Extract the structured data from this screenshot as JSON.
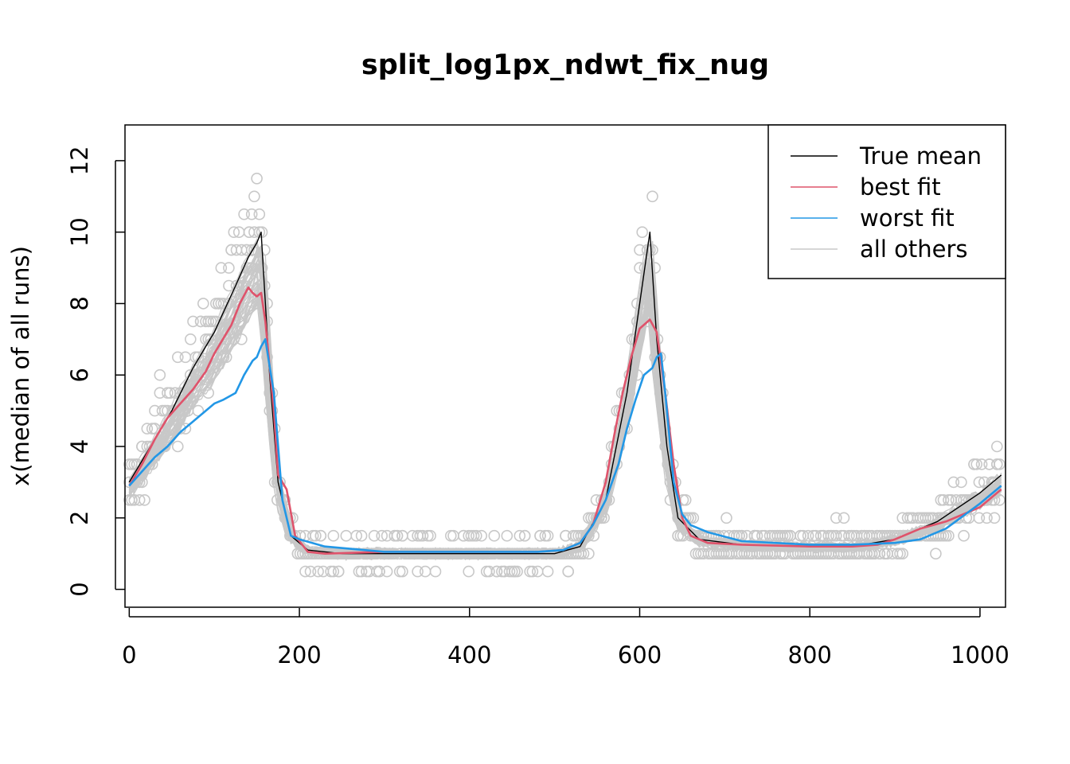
{
  "chart_data": {
    "type": "line",
    "title": "split_log1px_ndwt_fix_nug",
    "xlabel": "",
    "ylabel": "x(median of all runs)",
    "xlim": [
      -5,
      1030
    ],
    "ylim": [
      -0.5,
      13
    ],
    "x_ticks": [
      0,
      200,
      400,
      600,
      800,
      1000
    ],
    "x_tick_labels": [
      "0",
      "200",
      "400",
      "600",
      "800",
      "1000"
    ],
    "y_ticks": [
      0,
      2,
      4,
      6,
      8,
      10,
      12
    ],
    "y_tick_labels": [
      "0",
      "2",
      "4",
      "6",
      "8",
      "10",
      "12"
    ],
    "legend_position": "top-right",
    "colors": {
      "true_mean": "#000000",
      "best_fit": "#DF536B",
      "worst_fit": "#2297E6",
      "all_others": "#C8C8C8",
      "points": "#C8C8C8"
    },
    "legend": [
      {
        "label": "True mean",
        "color": "#000000"
      },
      {
        "label": "best fit",
        "color": "#DF536B"
      },
      {
        "label": "worst fit",
        "color": "#2297E6"
      },
      {
        "label": "all others",
        "color": "#C8C8C8"
      }
    ],
    "series": [
      {
        "name": "True mean",
        "color": "#000000",
        "x": [
          0,
          25,
          50,
          75,
          100,
          125,
          140,
          150,
          155,
          165,
          175,
          190,
          210,
          250,
          300,
          400,
          500,
          530,
          560,
          585,
          600,
          612,
          620,
          632,
          645,
          670,
          720,
          800,
          850,
          900,
          950,
          1000,
          1025
        ],
        "y": [
          3.0,
          4.0,
          5.0,
          6.2,
          7.2,
          8.5,
          9.3,
          9.7,
          10.0,
          6.0,
          3.0,
          1.5,
          1.1,
          1.0,
          1.0,
          1.0,
          1.0,
          1.2,
          2.5,
          5.5,
          8.0,
          10.0,
          7.0,
          4.0,
          2.0,
          1.4,
          1.25,
          1.2,
          1.2,
          1.4,
          1.9,
          2.7,
          3.2
        ]
      },
      {
        "name": "best fit",
        "color": "#DF536B",
        "x": [
          0,
          15,
          30,
          45,
          60,
          75,
          90,
          100,
          110,
          120,
          130,
          140,
          145,
          150,
          155,
          160,
          170,
          175,
          185,
          195,
          210,
          230,
          300,
          400,
          480,
          510,
          530,
          545,
          560,
          570,
          580,
          590,
          600,
          612,
          620,
          630,
          640,
          650,
          660,
          680,
          720,
          800,
          850,
          880,
          900,
          930,
          960,
          1000,
          1025
        ],
        "y": [
          2.9,
          3.5,
          4.2,
          4.8,
          5.2,
          5.6,
          6.1,
          6.6,
          7.0,
          7.4,
          8.0,
          8.45,
          8.3,
          8.2,
          8.3,
          7.5,
          5.0,
          3.2,
          2.8,
          1.5,
          1.05,
          1.0,
          1.05,
          1.05,
          1.05,
          1.1,
          1.3,
          1.8,
          3.0,
          4.3,
          5.5,
          6.5,
          7.3,
          7.55,
          7.2,
          5.5,
          3.5,
          2.0,
          1.5,
          1.3,
          1.25,
          1.2,
          1.2,
          1.25,
          1.4,
          1.7,
          1.9,
          2.3,
          2.8
        ]
      },
      {
        "name": "worst fit",
        "color": "#2297E6",
        "x": [
          0,
          15,
          30,
          45,
          60,
          75,
          90,
          100,
          110,
          125,
          135,
          145,
          150,
          155,
          160,
          170,
          180,
          190,
          200,
          230,
          300,
          400,
          480,
          510,
          530,
          545,
          560,
          575,
          585,
          595,
          605,
          615,
          620,
          625,
          630,
          640,
          650,
          660,
          680,
          720,
          800,
          850,
          900,
          930,
          960,
          1000,
          1025
        ],
        "y": [
          2.9,
          3.3,
          3.7,
          4.0,
          4.4,
          4.7,
          5.0,
          5.2,
          5.3,
          5.5,
          6.0,
          6.4,
          6.5,
          6.8,
          7.0,
          5.5,
          2.5,
          1.5,
          1.4,
          1.2,
          1.05,
          1.05,
          1.05,
          1.1,
          1.3,
          1.8,
          2.5,
          3.5,
          4.5,
          5.3,
          6.0,
          6.2,
          6.5,
          6.6,
          5.5,
          3.0,
          2.1,
          1.8,
          1.6,
          1.35,
          1.25,
          1.25,
          1.3,
          1.4,
          1.7,
          2.4,
          2.9
        ]
      }
    ]
  }
}
